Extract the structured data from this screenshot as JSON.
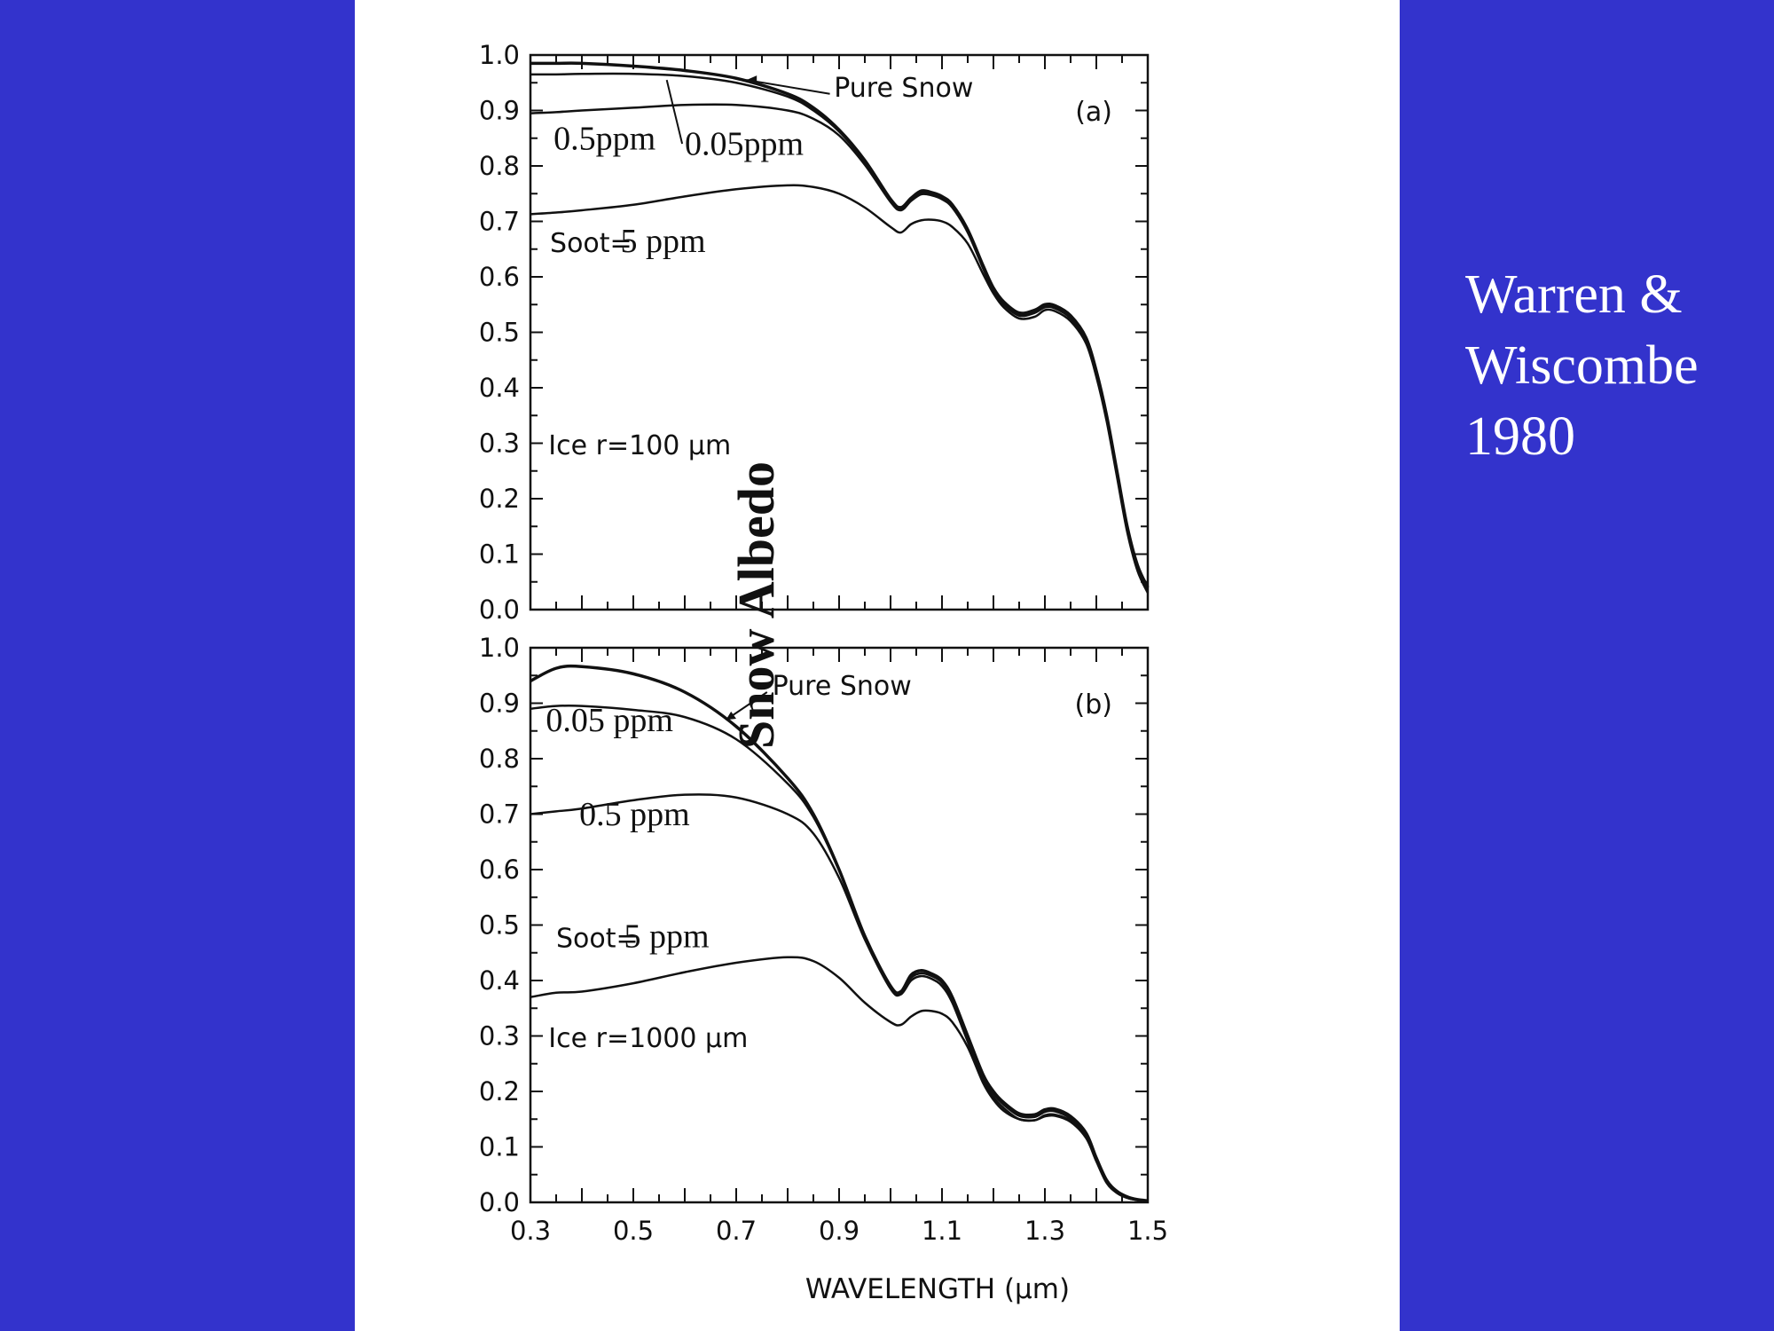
{
  "citation": {
    "line1": "Warren &",
    "line2": "Wiscombe",
    "line3": "1980"
  },
  "chart_data": {
    "type": "line",
    "ylabel": "Snow Albedo",
    "xlabel": "WAVELENGTH (μm)",
    "xlim": [
      0.3,
      1.5
    ],
    "ylim": [
      0.0,
      1.0
    ],
    "x_ticks": [
      "0.3",
      "0.5",
      "0.7",
      "0.9",
      "1.1",
      "1.3",
      "1.5"
    ],
    "y_ticks": [
      "0.0",
      "0.1",
      "0.2",
      "0.3",
      "0.4",
      "0.5",
      "0.6",
      "0.7",
      "0.8",
      "0.9",
      "1.0"
    ],
    "panels": [
      {
        "panel_label": "(a)",
        "ice_label": "Ice r=100 μm",
        "annotations": [
          {
            "text": "Pure Snow",
            "style": "sans",
            "x": 0.89,
            "y": 0.925
          },
          {
            "text": "0.05ppm",
            "style": "serif",
            "x": 0.6,
            "y": 0.82
          },
          {
            "text": "0.5ppm",
            "style": "serif",
            "x": 0.345,
            "y": 0.83
          },
          {
            "text": "Soot= ",
            "style": "sans",
            "x": 0.338,
            "y": 0.645
          },
          {
            "text": "5 ppm",
            "style": "serif",
            "x": 0.475,
            "y": 0.645
          }
        ],
        "series": [
          {
            "name": "Pure Snow",
            "width": 3.5,
            "x": [
              0.3,
              0.35,
              0.4,
              0.5,
              0.6,
              0.7,
              0.8,
              0.85,
              0.9,
              0.95,
              1.0,
              1.02,
              1.04,
              1.06,
              1.08,
              1.1,
              1.12,
              1.15,
              1.18,
              1.2,
              1.22,
              1.25,
              1.28,
              1.3,
              1.32,
              1.35,
              1.38,
              1.4,
              1.42,
              1.44,
              1.46,
              1.48,
              1.5
            ],
            "y": [
              0.985,
              0.985,
              0.985,
              0.98,
              0.972,
              0.958,
              0.93,
              0.905,
              0.865,
              0.81,
              0.74,
              0.725,
              0.742,
              0.755,
              0.752,
              0.745,
              0.73,
              0.685,
              0.62,
              0.58,
              0.555,
              0.535,
              0.54,
              0.55,
              0.548,
              0.53,
              0.49,
              0.43,
              0.35,
              0.25,
              0.15,
              0.08,
              0.04
            ]
          },
          {
            "name": "0.05 ppm",
            "width": 2.5,
            "x": [
              0.3,
              0.35,
              0.4,
              0.5,
              0.6,
              0.7,
              0.8,
              0.85,
              0.9,
              0.95,
              1.0,
              1.02,
              1.04,
              1.06,
              1.08,
              1.1,
              1.12,
              1.15,
              1.18,
              1.2,
              1.22,
              1.25,
              1.28,
              1.3,
              1.32,
              1.35,
              1.38,
              1.4,
              1.42,
              1.44,
              1.46,
              1.48,
              1.5
            ],
            "y": [
              0.965,
              0.965,
              0.966,
              0.966,
              0.962,
              0.95,
              0.925,
              0.9,
              0.862,
              0.807,
              0.738,
              0.723,
              0.74,
              0.752,
              0.75,
              0.743,
              0.728,
              0.683,
              0.618,
              0.578,
              0.553,
              0.533,
              0.538,
              0.548,
              0.546,
              0.528,
              0.488,
              0.428,
              0.348,
              0.248,
              0.148,
              0.078,
              0.038
            ]
          },
          {
            "name": "0.5 ppm",
            "width": 2.5,
            "x": [
              0.3,
              0.35,
              0.4,
              0.5,
              0.6,
              0.7,
              0.8,
              0.85,
              0.9,
              0.95,
              1.0,
              1.02,
              1.04,
              1.06,
              1.08,
              1.1,
              1.12,
              1.15,
              1.18,
              1.2,
              1.22,
              1.25,
              1.28,
              1.3,
              1.32,
              1.35,
              1.38,
              1.4,
              1.42,
              1.44,
              1.46,
              1.48,
              1.5
            ],
            "y": [
              0.895,
              0.897,
              0.9,
              0.905,
              0.91,
              0.91,
              0.9,
              0.885,
              0.855,
              0.802,
              0.735,
              0.72,
              0.737,
              0.749,
              0.747,
              0.74,
              0.725,
              0.68,
              0.615,
              0.575,
              0.55,
              0.53,
              0.535,
              0.545,
              0.543,
              0.525,
              0.485,
              0.425,
              0.345,
              0.245,
              0.145,
              0.075,
              0.035
            ]
          },
          {
            "name": "Soot=5 ppm",
            "width": 2.5,
            "x": [
              0.3,
              0.35,
              0.4,
              0.5,
              0.6,
              0.7,
              0.8,
              0.85,
              0.9,
              0.95,
              1.0,
              1.02,
              1.04,
              1.06,
              1.08,
              1.1,
              1.12,
              1.15,
              1.18,
              1.2,
              1.22,
              1.25,
              1.28,
              1.3,
              1.32,
              1.35,
              1.38,
              1.4,
              1.42,
              1.44,
              1.46,
              1.48,
              1.5
            ],
            "y": [
              0.713,
              0.716,
              0.72,
              0.73,
              0.745,
              0.758,
              0.765,
              0.762,
              0.75,
              0.725,
              0.69,
              0.68,
              0.695,
              0.702,
              0.703,
              0.7,
              0.69,
              0.66,
              0.605,
              0.57,
              0.545,
              0.525,
              0.528,
              0.54,
              0.538,
              0.52,
              0.48,
              0.42,
              0.34,
              0.24,
              0.14,
              0.07,
              0.03
            ]
          }
        ]
      },
      {
        "panel_label": "(b)",
        "ice_label": "Ice r=1000 μm",
        "annotations": [
          {
            "text": "Pure Snow",
            "style": "sans",
            "x": 0.77,
            "y": 0.915
          },
          {
            "text": "0.05 ppm",
            "style": "serif",
            "x": 0.33,
            "y": 0.85
          },
          {
            "text": "0.5 ppm",
            "style": "serif",
            "x": 0.395,
            "y": 0.68
          },
          {
            "text": "Soot= ",
            "style": "sans",
            "x": 0.35,
            "y": 0.46
          },
          {
            "text": "5 ppm",
            "style": "serif",
            "x": 0.482,
            "y": 0.46
          }
        ],
        "series": [
          {
            "name": "Pure Snow",
            "width": 3.5,
            "x": [
              0.3,
              0.35,
              0.4,
              0.5,
              0.6,
              0.7,
              0.8,
              0.85,
              0.9,
              0.95,
              1.0,
              1.02,
              1.04,
              1.06,
              1.08,
              1.1,
              1.12,
              1.15,
              1.18,
              1.2,
              1.22,
              1.25,
              1.28,
              1.3,
              1.32,
              1.35,
              1.38,
              1.4,
              1.42,
              1.44,
              1.46,
              1.48,
              1.5
            ],
            "y": [
              0.94,
              0.963,
              0.966,
              0.953,
              0.92,
              0.858,
              0.765,
              0.7,
              0.6,
              0.48,
              0.39,
              0.38,
              0.41,
              0.418,
              0.412,
              0.4,
              0.37,
              0.3,
              0.23,
              0.2,
              0.18,
              0.16,
              0.158,
              0.167,
              0.168,
              0.155,
              0.125,
              0.08,
              0.04,
              0.02,
              0.01,
              0.005,
              0.003
            ]
          },
          {
            "name": "0.05 ppm",
            "width": 2.5,
            "x": [
              0.3,
              0.35,
              0.4,
              0.5,
              0.6,
              0.7,
              0.8,
              0.85,
              0.9,
              0.95,
              1.0,
              1.02,
              1.04,
              1.06,
              1.08,
              1.1,
              1.12,
              1.15,
              1.18,
              1.2,
              1.22,
              1.25,
              1.28,
              1.3,
              1.32,
              1.35,
              1.38,
              1.4,
              1.42,
              1.44,
              1.46,
              1.48,
              1.5
            ],
            "y": [
              0.89,
              0.895,
              0.895,
              0.888,
              0.875,
              0.835,
              0.755,
              0.695,
              0.598,
              0.478,
              0.388,
              0.378,
              0.405,
              0.413,
              0.408,
              0.396,
              0.366,
              0.296,
              0.226,
              0.196,
              0.176,
              0.156,
              0.154,
              0.163,
              0.164,
              0.151,
              0.121,
              0.077,
              0.038,
              0.018,
              0.009,
              0.004,
              0.002
            ]
          },
          {
            "name": "0.5 ppm",
            "width": 2.5,
            "x": [
              0.3,
              0.35,
              0.4,
              0.5,
              0.6,
              0.7,
              0.8,
              0.85,
              0.9,
              0.95,
              1.0,
              1.02,
              1.04,
              1.06,
              1.08,
              1.1,
              1.12,
              1.15,
              1.18,
              1.2,
              1.22,
              1.25,
              1.28,
              1.3,
              1.32,
              1.35,
              1.38,
              1.4,
              1.42,
              1.44,
              1.46,
              1.48,
              1.5
            ],
            "y": [
              0.7,
              0.705,
              0.71,
              0.725,
              0.735,
              0.73,
              0.7,
              0.665,
              0.585,
              0.474,
              0.385,
              0.375,
              0.4,
              0.408,
              0.403,
              0.39,
              0.36,
              0.29,
              0.22,
              0.19,
              0.17,
              0.15,
              0.148,
              0.157,
              0.158,
              0.147,
              0.118,
              0.075,
              0.036,
              0.017,
              0.008,
              0.004,
              0.002
            ]
          },
          {
            "name": "Soot=5 ppm",
            "width": 2.5,
            "x": [
              0.3,
              0.35,
              0.4,
              0.5,
              0.6,
              0.7,
              0.8,
              0.85,
              0.9,
              0.95,
              1.0,
              1.02,
              1.04,
              1.06,
              1.08,
              1.1,
              1.12,
              1.15,
              1.18,
              1.2,
              1.22,
              1.25,
              1.28,
              1.3,
              1.32,
              1.35,
              1.38,
              1.4,
              1.42,
              1.44,
              1.46,
              1.48,
              1.5
            ],
            "y": [
              0.37,
              0.378,
              0.38,
              0.395,
              0.415,
              0.432,
              0.442,
              0.435,
              0.405,
              0.36,
              0.325,
              0.32,
              0.335,
              0.345,
              0.345,
              0.34,
              0.325,
              0.28,
              0.215,
              0.185,
              0.165,
              0.15,
              0.148,
              0.155,
              0.156,
              0.145,
              0.116,
              0.074,
              0.035,
              0.017,
              0.008,
              0.004,
              0.002
            ]
          }
        ]
      }
    ]
  }
}
